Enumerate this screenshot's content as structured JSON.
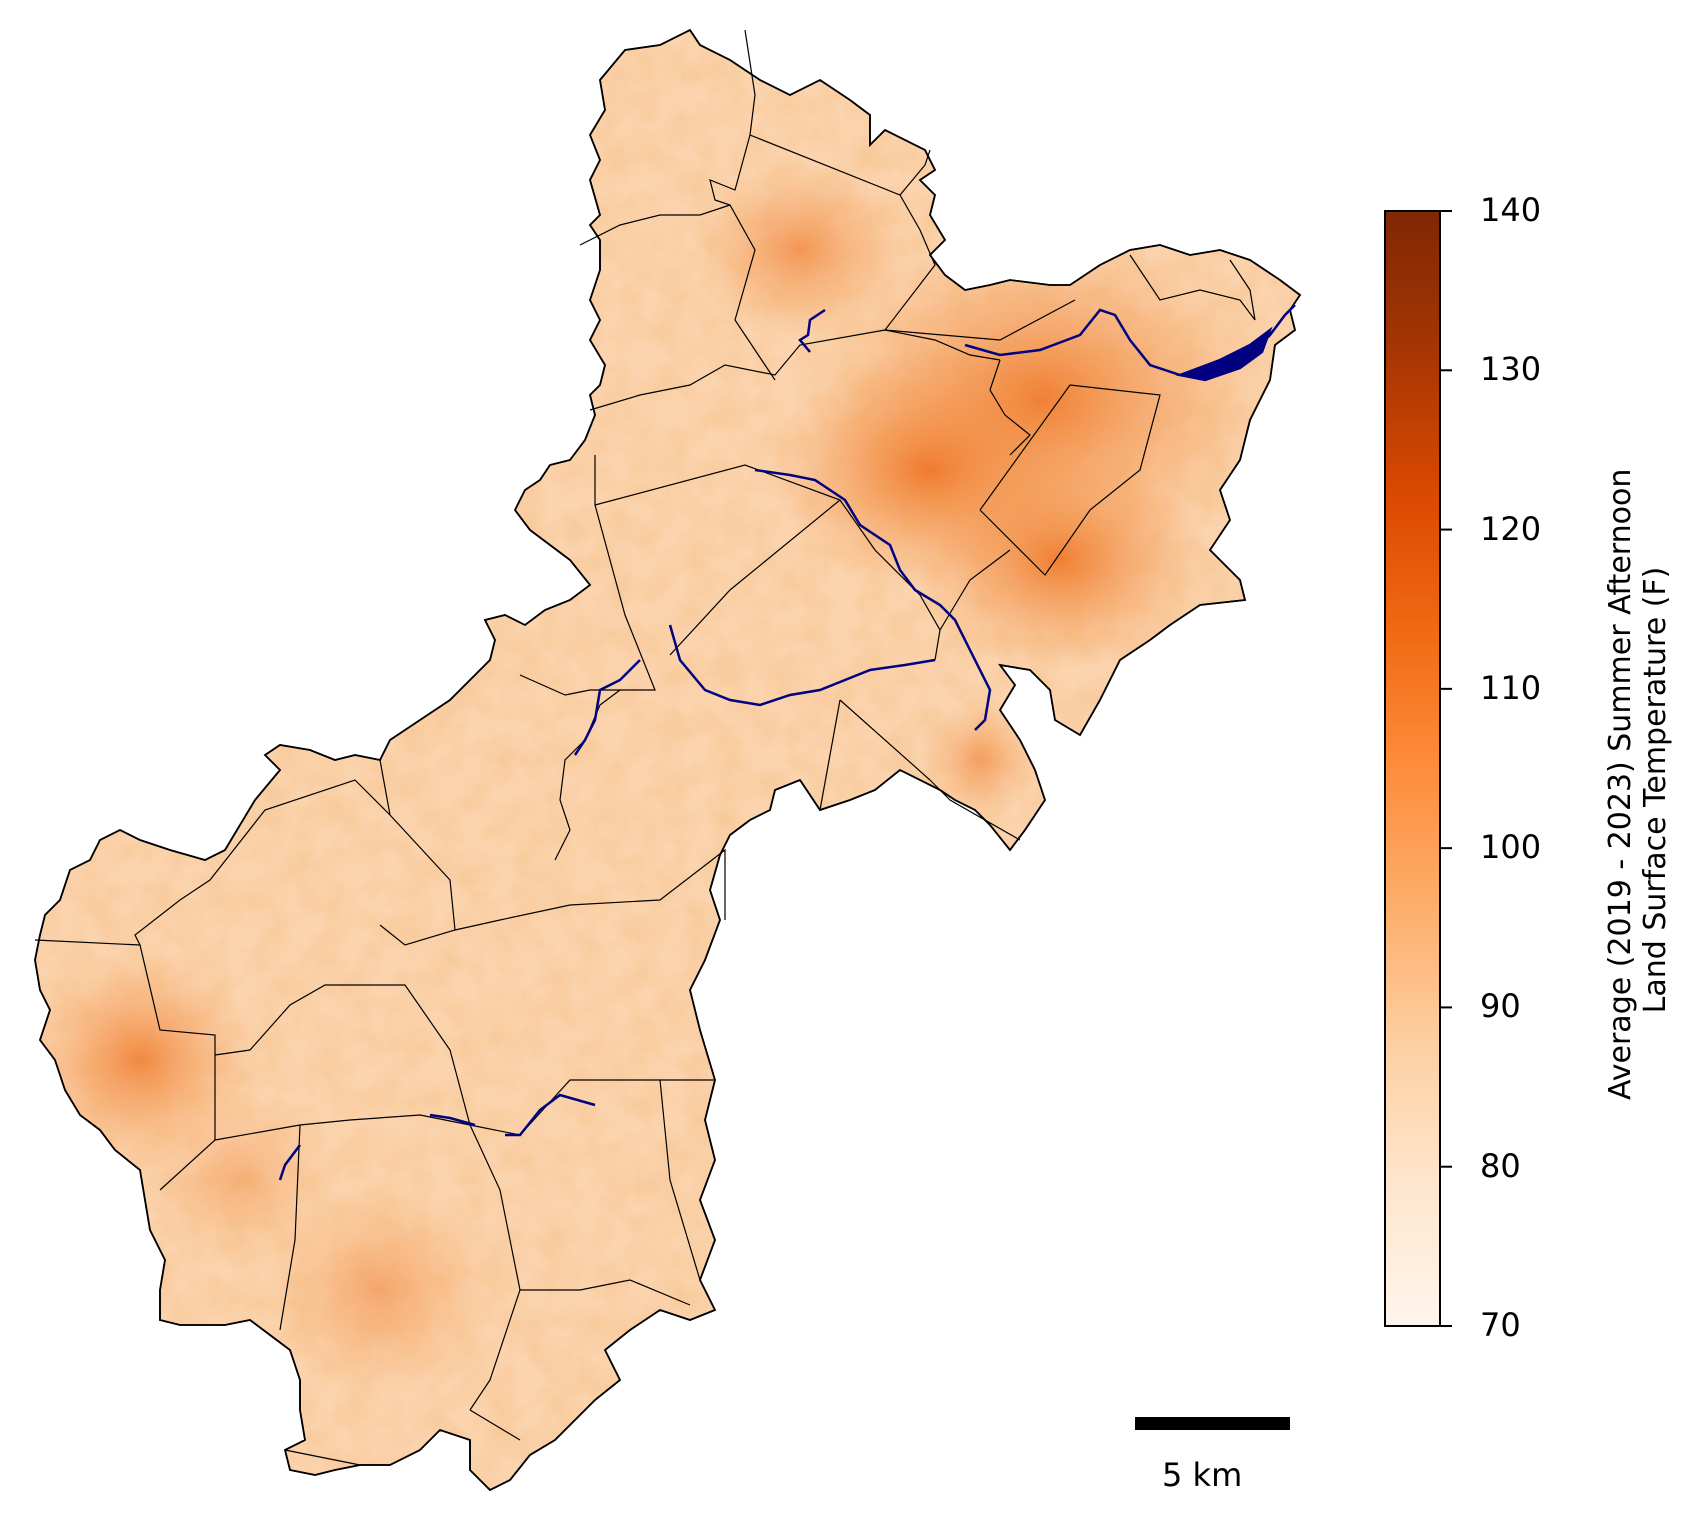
{
  "colorbar": {
    "title_line1": "Average (2019 - 2023) Summer Afternoon",
    "title_line2": "Land Surface Temperature (F)",
    "min": 70,
    "max": 140,
    "ticks": [
      "70",
      "80",
      "90",
      "100",
      "110",
      "120",
      "130",
      "140"
    ],
    "colormap": "Oranges",
    "stops": [
      "#fff5eb",
      "#fee6ce",
      "#fdd0a2",
      "#fdae6b",
      "#fd8d3c",
      "#f16913",
      "#d94801",
      "#a63603",
      "#7f2704"
    ]
  },
  "scale_bar": {
    "label": "5 km"
  },
  "colors": {
    "boundary": "#000000",
    "water": "#000080",
    "background": "#ffffff"
  }
}
